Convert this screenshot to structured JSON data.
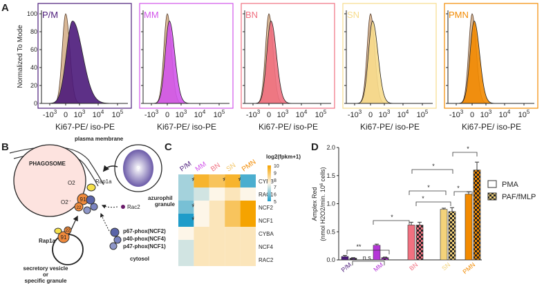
{
  "panel_labels": {
    "a": "A",
    "b": "B",
    "c": "C",
    "d": "D"
  },
  "panel_a": {
    "y_label": "Normalized To Mode",
    "x_label": "Ki67-PE/ iso-PE",
    "yticks": [
      0,
      20,
      40,
      60,
      80,
      100
    ],
    "xticks": [
      {
        "base": "-10",
        "exp": "3"
      },
      {
        "base": "0"
      },
      {
        "base": "10",
        "exp": "3"
      },
      {
        "base": "10",
        "exp": "4"
      },
      {
        "base": "10",
        "exp": "5"
      }
    ],
    "populations": [
      {
        "name": "P/M",
        "color": "#4b1a7a"
      },
      {
        "name": "MM",
        "color": "#d255ea"
      },
      {
        "name": "BN",
        "color": "#f07080"
      },
      {
        "name": "SN",
        "color": "#f7dc8c"
      },
      {
        "name": "PMN",
        "color": "#f28a00"
      }
    ]
  },
  "panel_b": {
    "membrane": "plasma membrane",
    "phagosome": "PHAGOSOME",
    "o2": "O2",
    "superoxide": {
      "base": "O2",
      "sup": "·-"
    },
    "rap1a_top": "Rap1a",
    "gp91_top": "91",
    "p22_top": "22",
    "azurophil": [
      "azurophil",
      "granule"
    ],
    "unknown": "?",
    "rac2": "Rac2",
    "phox": [
      "p67-phox(NCF2)",
      "p40-phox(NCF4)",
      "p47-phox(NCF1)"
    ],
    "cytosol": "cytosol",
    "rap1a_bottom": "Rap1a",
    "gp91_bottom": "91",
    "p22_bottom": "22",
    "vesicle": [
      "secretory vesicle",
      "or",
      "specific granule"
    ]
  },
  "panel_c": {
    "columns": [
      "P/M",
      "MM",
      "BN",
      "SN",
      "PMN"
    ],
    "column_colors": [
      "#4b1a7a",
      "#d255ea",
      "#f07080",
      "#f3c66a",
      "#f28a00"
    ],
    "rows": [
      "CYBB",
      "RAC1",
      "NCF2",
      "NCF1",
      "CYBA",
      "NCF4",
      "RAC2"
    ],
    "values": [
      [
        6.5,
        9.5,
        9,
        9.5,
        5.5
      ],
      [
        6.5,
        7,
        7.5,
        8,
        7.5
      ],
      [
        6,
        7.5,
        8,
        9,
        10
      ],
      [
        5,
        7.5,
        8,
        9,
        10
      ],
      [
        7.5,
        8,
        8,
        8,
        8
      ],
      [
        7,
        8,
        8,
        8,
        8
      ],
      [
        7,
        8,
        8,
        8,
        8
      ]
    ],
    "stars": [
      [
        "*",
        null,
        "*",
        "*",
        null
      ],
      [
        null,
        null,
        null,
        null,
        null
      ],
      [
        "*",
        null,
        null,
        null,
        null
      ],
      [
        "*",
        null,
        null,
        null,
        null
      ],
      [
        null,
        null,
        null,
        null,
        null
      ],
      [
        null,
        null,
        null,
        null,
        null
      ],
      [
        null,
        null,
        null,
        null,
        null
      ]
    ],
    "legend_title": "log2(fpkm+1)",
    "colorbar_range": [
      5,
      10
    ],
    "colorbar_ticks": [
      10,
      9,
      8,
      7,
      6,
      5
    ],
    "low_color": "#1f9cc9",
    "mid_color": "#fdf6e8",
    "high_color": "#f5a300"
  },
  "panel_d": {
    "type": "bar",
    "y_label": "Amplex Red",
    "y_label_2": {
      "pre": "(nmol H2O2/min. 10",
      "sup": "6",
      "post": " cells)"
    },
    "categories": [
      "P/M",
      "MM",
      "BN",
      "SN",
      "PMN"
    ],
    "category_colors": [
      "#4b1a7a",
      "#b535d8",
      "#f07080",
      "#f3d27a",
      "#f28a00"
    ],
    "series": [
      {
        "name": "PMA",
        "pattern": "solid",
        "values": [
          0.06,
          0.26,
          0.62,
          0.9,
          1.17
        ],
        "errors": [
          0.02,
          0.02,
          0.05,
          0.02,
          0.04
        ]
      },
      {
        "name": "PAF/fMLP",
        "pattern": "checker",
        "values": [
          0.03,
          0.04,
          0.62,
          0.86,
          1.6
        ],
        "errors": [
          0.01,
          0.01,
          0.05,
          0.07,
          0.14
        ]
      }
    ],
    "ylim": [
      0,
      2
    ],
    "yticks": [
      {
        "value": 0,
        "label": "0.0"
      },
      0.5,
      {
        "value": 1,
        "label": "1.0"
      },
      1.5,
      {
        "value": 2,
        "label": "2.0"
      }
    ],
    "annotations": [
      "**",
      "n.s.",
      "*",
      "*",
      "*",
      "*",
      "*",
      "*"
    ]
  }
}
